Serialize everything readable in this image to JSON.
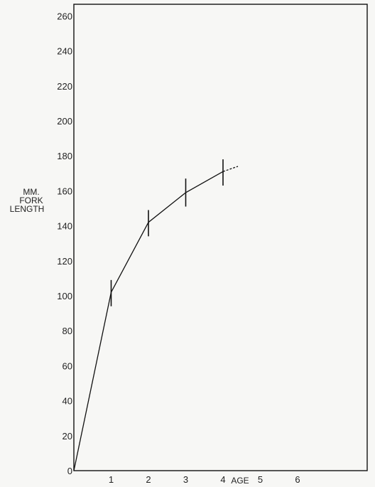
{
  "chart_data": {
    "type": "line",
    "xlabel": "AGE",
    "ylabel_lines": [
      "MM.",
      "FORK",
      "LENGTH"
    ],
    "xlim": [
      0,
      7.5
    ],
    "ylim": [
      0,
      270
    ],
    "x_ticks": [
      1,
      2,
      3,
      4,
      5,
      6
    ],
    "y_ticks": [
      0,
      20,
      40,
      60,
      80,
      100,
      120,
      140,
      160,
      180,
      200,
      220,
      240,
      260
    ],
    "grid": false,
    "series": [
      {
        "x": [
          0,
          1,
          2,
          3,
          4
        ],
        "y": [
          0,
          102,
          142,
          159,
          171
        ],
        "range_low": [
          null,
          94,
          134,
          151,
          163
        ],
        "range_high": [
          null,
          109,
          149,
          167,
          178
        ],
        "extrapolation": {
          "x": [
            4,
            4.4
          ],
          "y": [
            171,
            174
          ]
        }
      }
    ]
  }
}
